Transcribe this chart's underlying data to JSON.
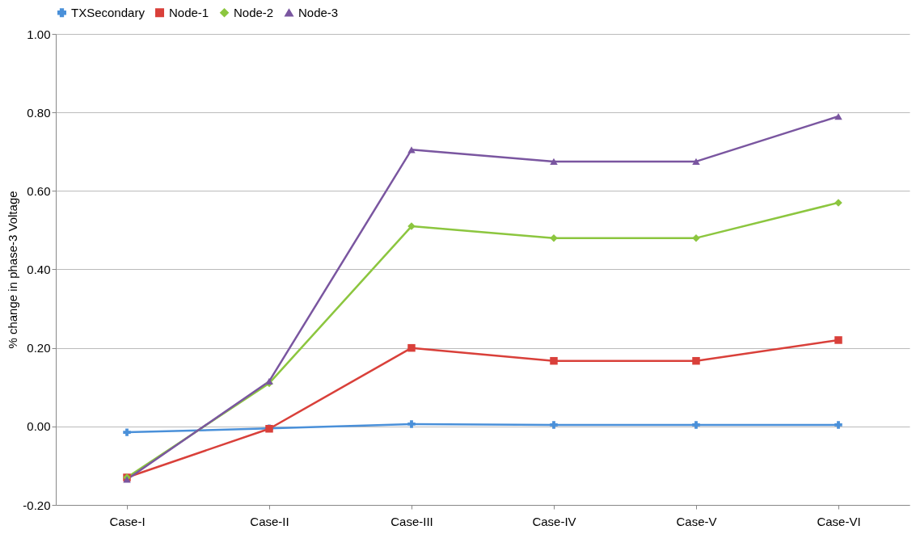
{
  "chart_data": {
    "type": "line",
    "ylabel": "% change in phase-3 Voltage",
    "categories": [
      "Case-I",
      "Case-II",
      "Case-III",
      "Case-IV",
      "Case-V",
      "Case-VI"
    ],
    "series": [
      {
        "name": "TXSecondary",
        "color": "#4a90d9",
        "marker": "cross",
        "values": [
          -0.015,
          -0.005,
          0.006,
          0.004,
          0.004,
          0.004
        ]
      },
      {
        "name": "Node-1",
        "color": "#d9403a",
        "marker": "square",
        "values": [
          -0.13,
          -0.006,
          0.2,
          0.167,
          0.167,
          0.22
        ]
      },
      {
        "name": "Node-2",
        "color": "#8cc63f",
        "marker": "diamond",
        "values": [
          -0.13,
          0.11,
          0.51,
          0.48,
          0.48,
          0.57
        ]
      },
      {
        "name": "Node-3",
        "color": "#7a56a0",
        "marker": "triangle",
        "values": [
          -0.135,
          0.115,
          0.705,
          0.675,
          0.675,
          0.79
        ]
      }
    ],
    "ylim": [
      -0.2,
      1.0
    ],
    "yticks": [
      {
        "value": -0.2,
        "label": "-0.20"
      },
      {
        "value": 0,
        "label": "0.00"
      },
      {
        "value": 0.2,
        "label": "0.20"
      },
      {
        "value": 0.4,
        "label": "0.40"
      },
      {
        "value": 0.6,
        "label": "0.60"
      },
      {
        "value": 0.8,
        "label": "0.80"
      },
      {
        "value": 1.0,
        "label": "1.00"
      }
    ],
    "grid": "y",
    "legend": "top",
    "line_style": "solid"
  }
}
